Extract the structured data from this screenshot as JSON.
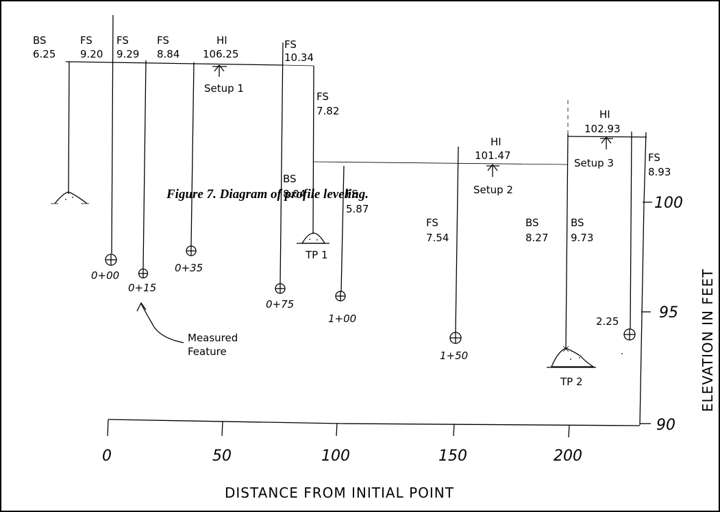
{
  "caption": "Figure 7. Diagram of profile leveling.",
  "readings": [
    {
      "type": "BS",
      "value": "6.25"
    },
    {
      "type": "FS",
      "value": "9.20"
    },
    {
      "type": "FS",
      "value": "9.29"
    },
    {
      "type": "FS",
      "value": "8.84"
    },
    {
      "type": "HI",
      "value": "106.25"
    },
    {
      "type": "FS",
      "value": "10.34"
    },
    {
      "type": "FS",
      "value": "7.82"
    },
    {
      "type": "BS",
      "value": "8.04"
    },
    {
      "type": "FS",
      "value": "5.87"
    },
    {
      "type": "FS",
      "value": "7.54"
    },
    {
      "type": "HI",
      "value": "101.47"
    },
    {
      "type": "BS",
      "value": "8.27"
    },
    {
      "type": "BS",
      "value": "9.73"
    },
    {
      "type": "HI",
      "value": "102.93"
    },
    {
      "type": "FS",
      "value": "8.93"
    }
  ],
  "setups": [
    "Setup 1",
    "Setup 2",
    "Setup 3"
  ],
  "turning_points": [
    "TP 1",
    "TP 2"
  ],
  "stations": [
    "0+00",
    "0+15",
    "0+35",
    "0+75",
    "1+00",
    "1+50"
  ],
  "extra_reading": "2.25",
  "measured_feature": [
    "Measured",
    "Feature"
  ],
  "x_axis": {
    "title": "DISTANCE FROM INITIAL POINT",
    "ticks": [
      "0",
      "50",
      "100",
      "150",
      "200"
    ]
  },
  "y_axis": {
    "title": "ELEVATION IN FEET",
    "ticks": [
      "100",
      "95",
      "90"
    ]
  }
}
